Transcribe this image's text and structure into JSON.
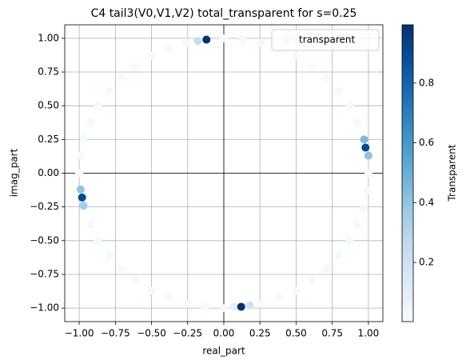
{
  "chart_data": {
    "type": "scatter",
    "title": "C4 tail3(V0,V1,V2) total_transparent for s=0.25",
    "x_label": "real_part",
    "y_label": "imag_part",
    "legend": "transparent",
    "legend_position": "upper right",
    "grid": true,
    "colormap": "Blues",
    "colorbar_label": "Transparent",
    "clim": [
      0.002,
      0.995
    ],
    "cticks": [
      0.2,
      0.4,
      0.6,
      0.8
    ],
    "xlim": [
      -1.1,
      1.1
    ],
    "ylim": [
      -1.1,
      1.1
    ],
    "xticks": [
      {
        "value": -1,
        "label": "−1.00"
      },
      {
        "value": -0.75,
        "label": "−0.75"
      },
      {
        "value": -0.5,
        "label": "−0.50"
      },
      {
        "value": -0.25,
        "label": "−0.25"
      },
      {
        "value": 0,
        "label": "0.00"
      },
      {
        "value": 0.25,
        "label": "0.25"
      },
      {
        "value": 0.5,
        "label": "0.50"
      },
      {
        "value": 0.75,
        "label": "0.75"
      },
      {
        "value": 1,
        "label": "1.00"
      }
    ],
    "yticks": [
      {
        "value": -1,
        "label": "−1.00"
      },
      {
        "value": -0.75,
        "label": "−0.75"
      },
      {
        "value": -0.5,
        "label": "−0.50"
      },
      {
        "value": -0.25,
        "label": "−0.25"
      },
      {
        "value": 0,
        "label": "0.00"
      },
      {
        "value": 0.25,
        "label": "0.25"
      },
      {
        "value": 0.5,
        "label": "0.50"
      },
      {
        "value": 0.75,
        "label": "0.75"
      },
      {
        "value": 1,
        "label": "1.00"
      }
    ],
    "x": [
      1,
      0.99,
      0.97,
      0.92,
      0.87,
      0.79,
      0.71,
      0.61,
      0.5,
      0.38,
      0.26,
      0.13,
      0,
      -0.13,
      -0.26,
      -0.38,
      -0.5,
      -0.61,
      -0.71,
      -0.79,
      -0.87,
      -0.92,
      -0.97,
      -0.99,
      -1,
      -0.99,
      -0.97,
      -0.92,
      -0.87,
      -0.79,
      -0.71,
      -0.61,
      -0.5,
      -0.38,
      -0.26,
      -0.13,
      0,
      0.13,
      0.26,
      0.38,
      0.5,
      0.61,
      0.71,
      0.79,
      0.87,
      0.92,
      0.97,
      0.99,
      -0.18,
      -0.12,
      0.97,
      1.0,
      0.98,
      -0.99,
      -0.97,
      -0.98,
      0.07,
      0.18,
      0.12
    ],
    "y": [
      0,
      0.13,
      0.26,
      0.38,
      0.5,
      0.61,
      0.71,
      0.79,
      0.87,
      0.92,
      0.97,
      0.99,
      1,
      0.99,
      0.97,
      0.92,
      0.87,
      0.79,
      0.71,
      0.61,
      0.5,
      0.38,
      0.26,
      0.13,
      0,
      -0.13,
      -0.26,
      -0.38,
      -0.5,
      -0.61,
      -0.71,
      -0.79,
      -0.87,
      -0.92,
      -0.97,
      -0.99,
      -1,
      -0.99,
      -0.97,
      -0.92,
      -0.87,
      -0.79,
      -0.71,
      -0.61,
      -0.5,
      -0.38,
      -0.26,
      -0.13,
      0.98,
      0.99,
      0.25,
      0.13,
      0.19,
      -0.12,
      -0.24,
      -0.18,
      -0.99,
      -0.98,
      -0.99
    ],
    "c": [
      0.02,
      0.02,
      0.02,
      0.02,
      0.02,
      0.02,
      0.02,
      0.02,
      0.02,
      0.02,
      0.02,
      0.02,
      0.02,
      0.02,
      0.02,
      0.02,
      0.02,
      0.02,
      0.02,
      0.02,
      0.02,
      0.02,
      0.02,
      0.02,
      0.02,
      0.02,
      0.02,
      0.02,
      0.02,
      0.02,
      0.02,
      0.02,
      0.02,
      0.02,
      0.02,
      0.02,
      0.02,
      0.02,
      0.02,
      0.02,
      0.02,
      0.02,
      0.02,
      0.02,
      0.02,
      0.02,
      0.02,
      0.02,
      0.25,
      0.99,
      0.45,
      0.4,
      0.9,
      0.4,
      0.35,
      0.9,
      0.1,
      0.2,
      0.99
    ]
  }
}
